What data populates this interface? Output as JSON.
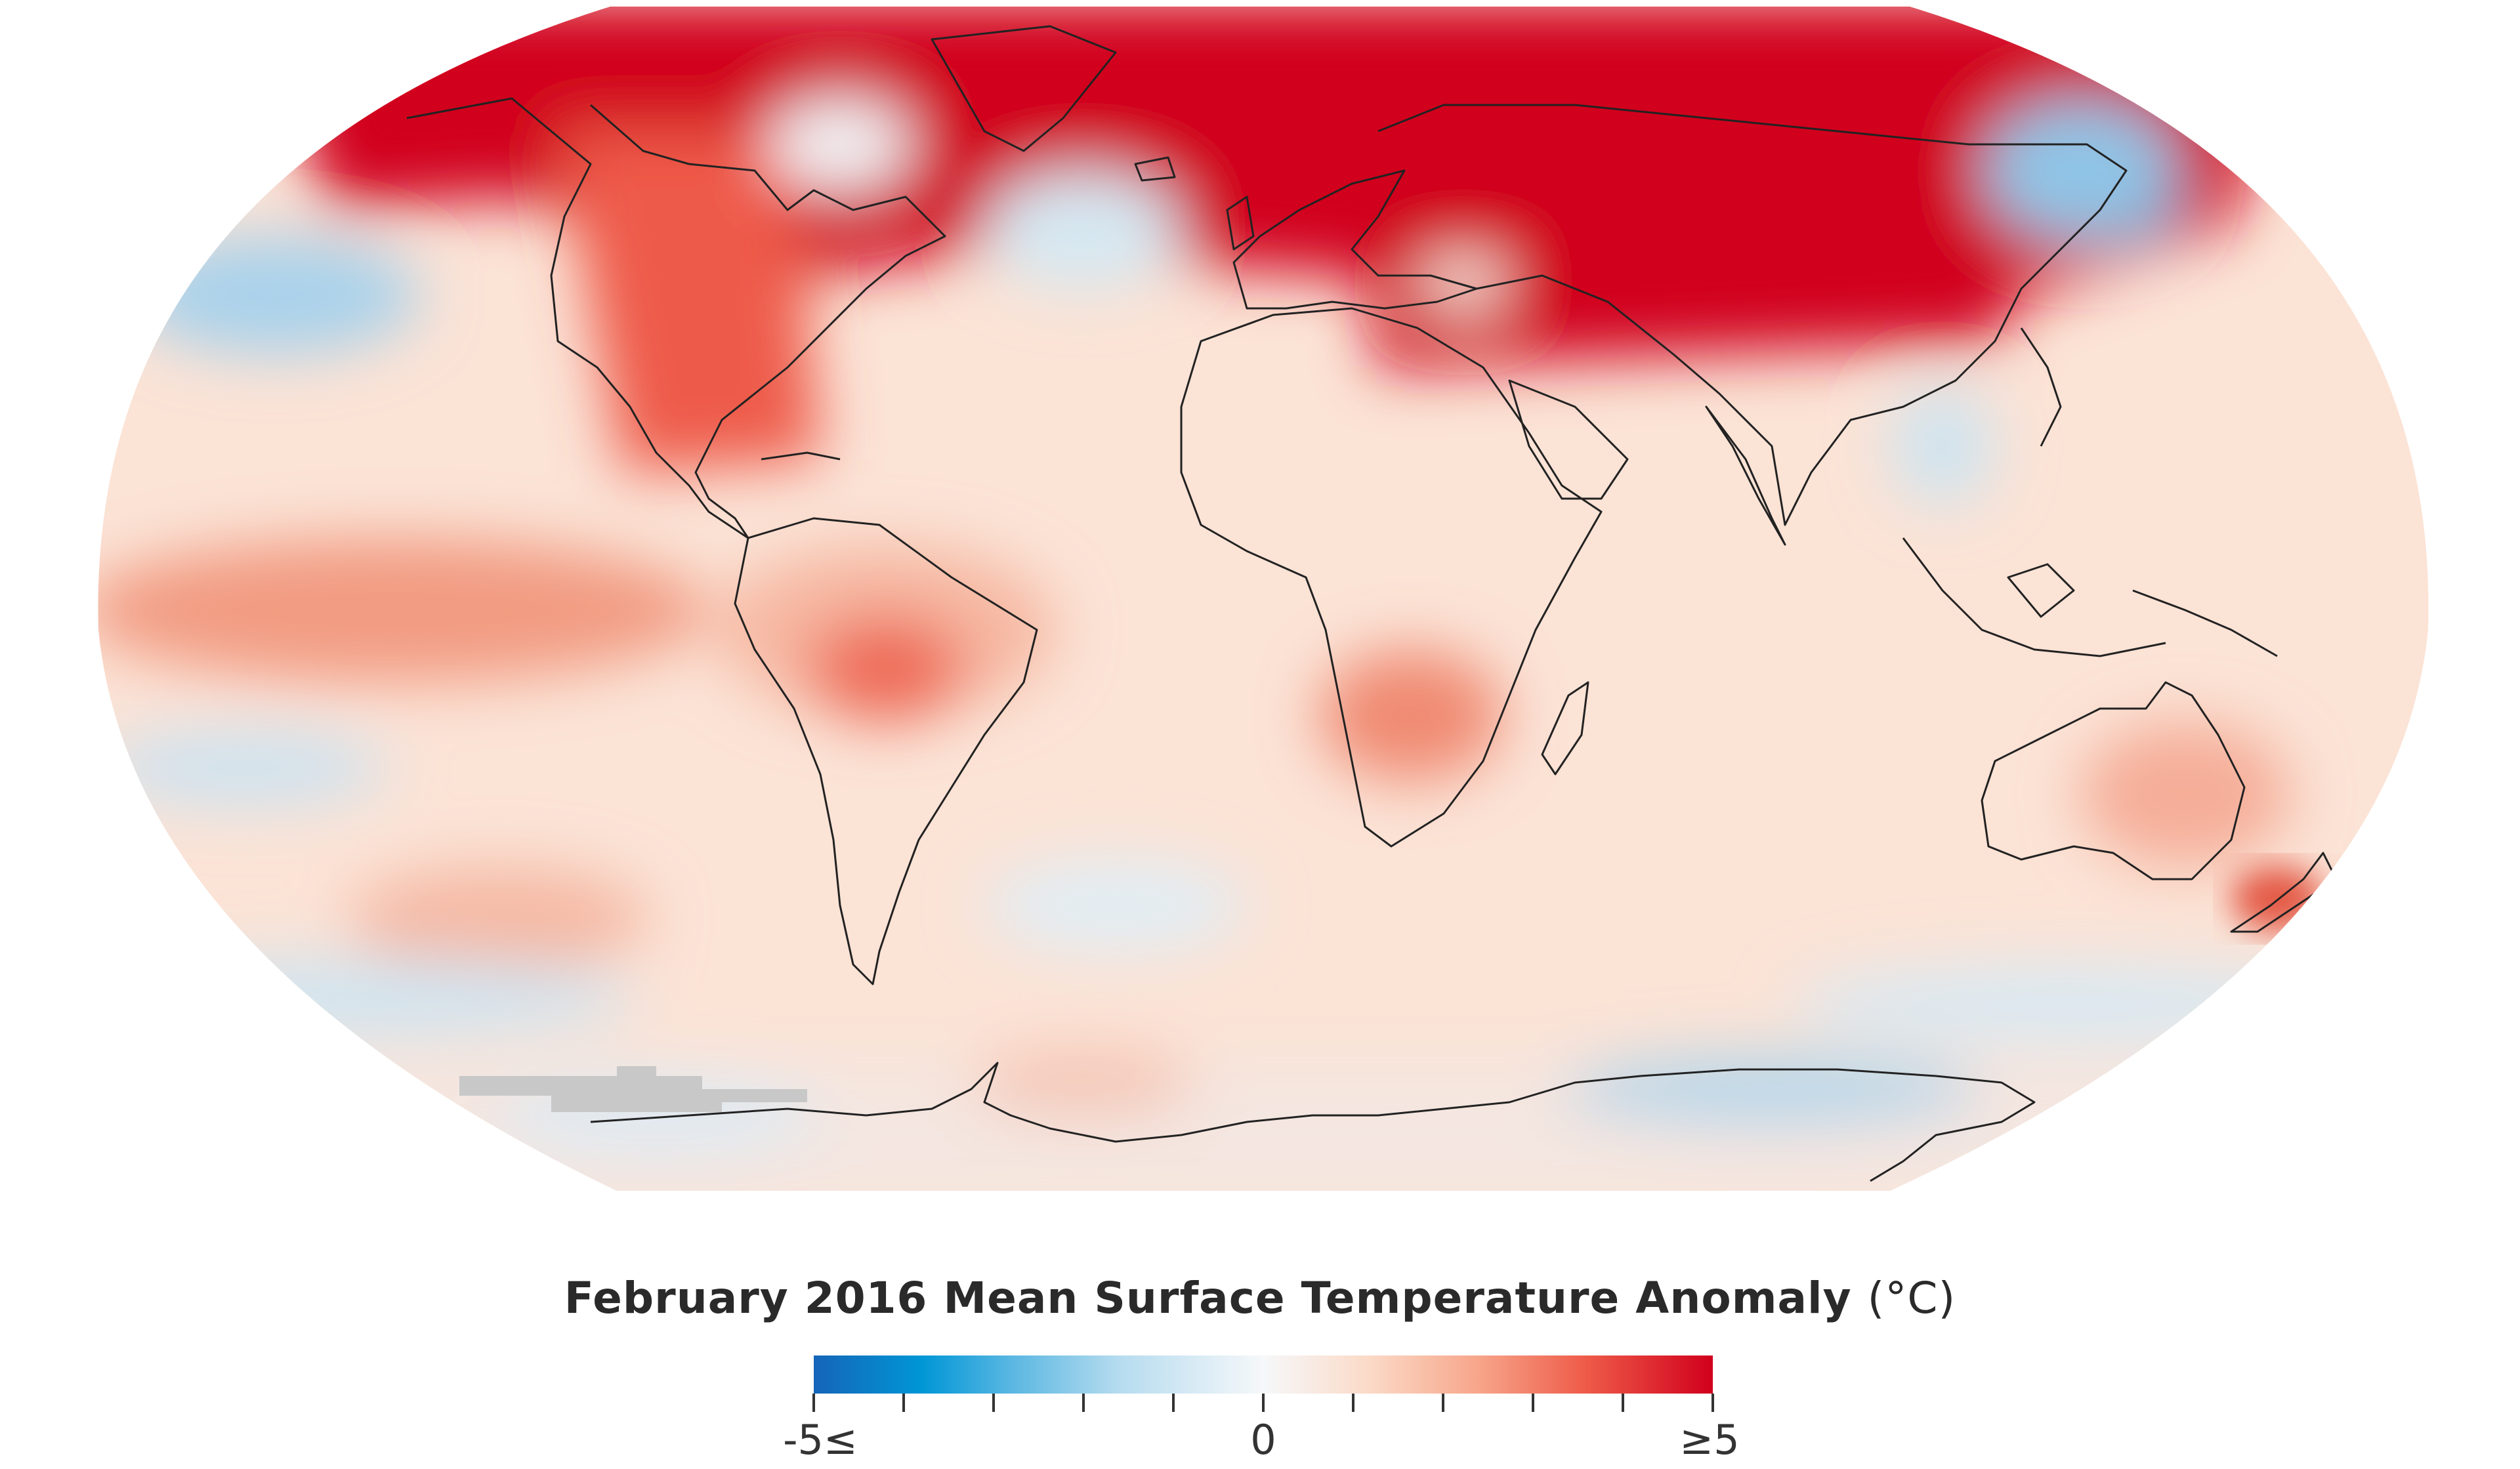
{
  "map": {
    "projection": "robinson",
    "colors": {
      "strong_warm": "#d1001c",
      "warm": "#ee5a48",
      "mild_warm": "#fbd9c6",
      "neutral": "#f6f8fa",
      "mild_cool": "#b6dcef",
      "cool": "#0096d6",
      "strong_cool": "#1565b8",
      "no_data": "#c8c8c8",
      "coastline": "#222222"
    }
  },
  "legend": {
    "title": "February 2016 Mean Surface Temperature Anomaly",
    "unit": "(°C)",
    "min_label": "-5≤",
    "mid_label": "0",
    "max_label": "≥5",
    "scale_min": -5,
    "scale_max": 5,
    "tick_count": 11
  }
}
